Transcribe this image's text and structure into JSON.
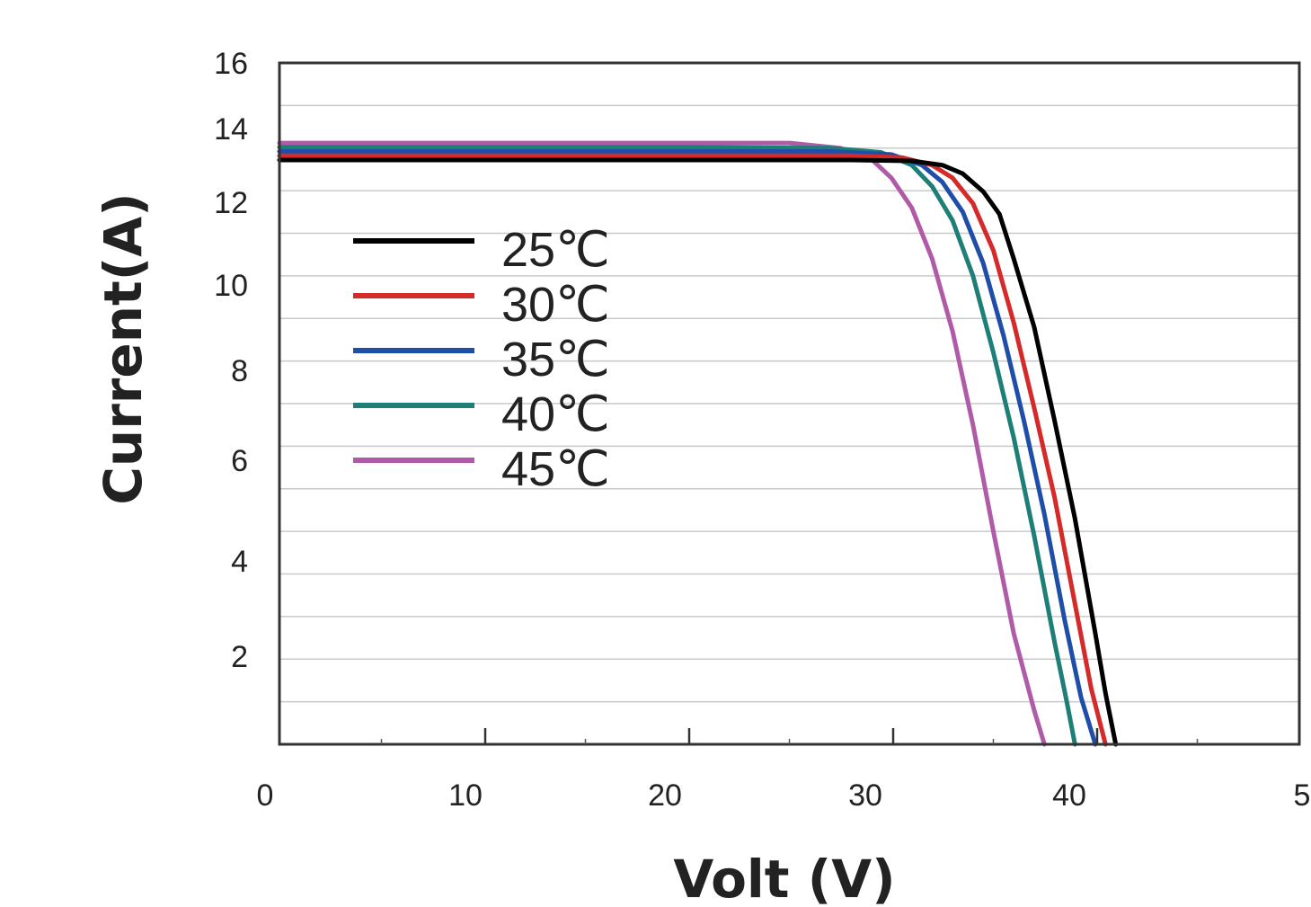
{
  "chart_data": {
    "type": "line",
    "title": "",
    "xlabel": "Volt (V)",
    "ylabel": "Current(A)",
    "xlim": [
      0,
      50
    ],
    "ylim": [
      0,
      16
    ],
    "x_ticks": [
      "0",
      "10",
      "20",
      "30",
      "40",
      "5"
    ],
    "y_ticks": [
      "16",
      "14",
      "12",
      "10",
      "8",
      "6",
      "4",
      "2"
    ],
    "grid": "horizontal",
    "legend_position": "upper-left",
    "series": [
      {
        "name": "25℃",
        "color": "#000000",
        "points": [
          [
            0,
            13.72
          ],
          [
            10,
            13.72
          ],
          [
            20,
            13.72
          ],
          [
            28,
            13.72
          ],
          [
            31,
            13.7
          ],
          [
            32.5,
            13.6
          ],
          [
            33.5,
            13.4
          ],
          [
            34.5,
            12.98
          ],
          [
            35.3,
            12.45
          ],
          [
            36,
            11.4
          ],
          [
            37,
            9.8
          ],
          [
            38,
            7.6
          ],
          [
            39,
            5.3
          ],
          [
            40,
            2.6
          ],
          [
            40.5,
            1.2
          ],
          [
            41,
            0
          ]
        ]
      },
      {
        "name": "30℃",
        "color": "#d42a2a",
        "points": [
          [
            0,
            13.82
          ],
          [
            10,
            13.82
          ],
          [
            20,
            13.82
          ],
          [
            28,
            13.82
          ],
          [
            30.5,
            13.78
          ],
          [
            32,
            13.6
          ],
          [
            33,
            13.3
          ],
          [
            34,
            12.7
          ],
          [
            35,
            11.6
          ],
          [
            36,
            9.9
          ],
          [
            37,
            7.9
          ],
          [
            38,
            5.8
          ],
          [
            39,
            3.3
          ],
          [
            39.8,
            1.3
          ],
          [
            40.5,
            0
          ]
        ]
      },
      {
        "name": "35℃",
        "color": "#1f4ea8",
        "points": [
          [
            0,
            13.92
          ],
          [
            10,
            13.92
          ],
          [
            20,
            13.92
          ],
          [
            27,
            13.92
          ],
          [
            30,
            13.85
          ],
          [
            31.5,
            13.6
          ],
          [
            32.5,
            13.2
          ],
          [
            33.5,
            12.5
          ],
          [
            34.5,
            11.3
          ],
          [
            35.5,
            9.6
          ],
          [
            36.5,
            7.6
          ],
          [
            37.5,
            5.4
          ],
          [
            38.5,
            2.9
          ],
          [
            39.3,
            1.1
          ],
          [
            40,
            0
          ]
        ]
      },
      {
        "name": "40℃",
        "color": "#1d7f78",
        "points": [
          [
            0,
            14.02
          ],
          [
            10,
            14.02
          ],
          [
            20,
            14.02
          ],
          [
            27,
            14.0
          ],
          [
            29.5,
            13.9
          ],
          [
            31,
            13.6
          ],
          [
            32,
            13.1
          ],
          [
            33,
            12.3
          ],
          [
            34,
            11.0
          ],
          [
            35,
            9.2
          ],
          [
            36,
            7.2
          ],
          [
            37,
            4.9
          ],
          [
            38,
            2.4
          ],
          [
            38.6,
            1.0
          ],
          [
            39,
            0
          ]
        ]
      },
      {
        "name": "45℃",
        "color": "#b05ba8",
        "points": [
          [
            0,
            14.12
          ],
          [
            10,
            14.12
          ],
          [
            20,
            14.12
          ],
          [
            25,
            14.12
          ],
          [
            27.5,
            14.0
          ],
          [
            29,
            13.75
          ],
          [
            30,
            13.3
          ],
          [
            31,
            12.6
          ],
          [
            32,
            11.4
          ],
          [
            33,
            9.7
          ],
          [
            34,
            7.5
          ],
          [
            35,
            5.0
          ],
          [
            36,
            2.6
          ],
          [
            37,
            0.8
          ],
          [
            37.5,
            0
          ]
        ]
      }
    ]
  }
}
